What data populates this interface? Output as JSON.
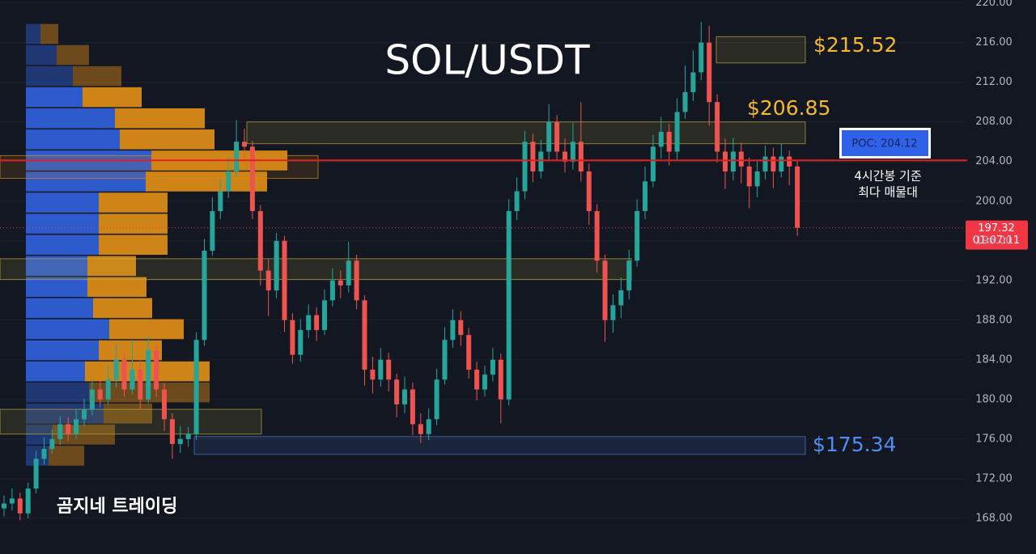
{
  "chart_data": {
    "type": "candlestick",
    "title": "SOL/USDT",
    "watermark": "곰지네 트레이딩",
    "ylim": [
      164.4,
      220.3
    ],
    "yticks": [
      {
        "value": 168,
        "label": "168.00"
      },
      {
        "value": 172,
        "label": "172.00"
      },
      {
        "value": 176,
        "label": "176.00"
      },
      {
        "value": 180,
        "label": "180.00"
      },
      {
        "value": 184,
        "label": "184.00"
      },
      {
        "value": 188,
        "label": "188.00"
      },
      {
        "value": 192,
        "label": "192.00"
      },
      {
        "value": 196,
        "label": "196.00"
      },
      {
        "value": 200,
        "label": "200.00"
      },
      {
        "value": 204,
        "label": "204.00"
      },
      {
        "value": 208,
        "label": "208.00"
      },
      {
        "value": 212,
        "label": "212.00"
      },
      {
        "value": 216,
        "label": "216.00"
      },
      {
        "value": 220,
        "label": "220.00"
      }
    ],
    "grid": true,
    "up_color": "#26a69a",
    "down_color": "#ef5350",
    "ohlc": [
      [
        169,
        170.3,
        168.2,
        169.5
      ],
      [
        169.5,
        171,
        168.8,
        170
      ],
      [
        170,
        170.6,
        167.8,
        168.5
      ],
      [
        168.5,
        171.6,
        168,
        171
      ],
      [
        171,
        174.8,
        170.5,
        174
      ],
      [
        174,
        176.2,
        173.4,
        175
      ],
      [
        175,
        177,
        174.5,
        176
      ],
      [
        176,
        178.3,
        175.4,
        177.5
      ],
      [
        177.5,
        178.2,
        175.8,
        176.5
      ],
      [
        176.5,
        179,
        176,
        178
      ],
      [
        178,
        180.1,
        177.3,
        179
      ],
      [
        179,
        182,
        178.4,
        181
      ],
      [
        181,
        181.8,
        179.2,
        180
      ],
      [
        180,
        183.5,
        179.5,
        182
      ],
      [
        182,
        185.6,
        181.2,
        184
      ],
      [
        184,
        184.8,
        180.3,
        181
      ],
      [
        181,
        186,
        180.5,
        183
      ],
      [
        183,
        183.9,
        179,
        180
      ],
      [
        180,
        186.4,
        179.6,
        185
      ],
      [
        185,
        185.6,
        180.2,
        181
      ],
      [
        181,
        181.7,
        176.8,
        178
      ],
      [
        178,
        178.6,
        174,
        175.5
      ],
      [
        175.5,
        177.3,
        174.6,
        176
      ],
      [
        176,
        177.2,
        175.2,
        176.5
      ],
      [
        176.5,
        186.8,
        175.9,
        186
      ],
      [
        186,
        196.2,
        185.4,
        195
      ],
      [
        195,
        200.4,
        194.5,
        199
      ],
      [
        199,
        202.3,
        198.2,
        201
      ],
      [
        201,
        204.5,
        200.3,
        203
      ],
      [
        203,
        208.2,
        202.4,
        206
      ],
      [
        206,
        207.3,
        203.8,
        205.5
      ],
      [
        205.5,
        206.1,
        198.2,
        199
      ],
      [
        199,
        199.6,
        191.5,
        193
      ],
      [
        193,
        194.2,
        188.4,
        191
      ],
      [
        191,
        196.8,
        190.2,
        196
      ],
      [
        196,
        196.5,
        186.8,
        188
      ],
      [
        188,
        188.7,
        183.6,
        184.5
      ],
      [
        184.5,
        188.1,
        183.8,
        187
      ],
      [
        187,
        189.6,
        186.2,
        188.5
      ],
      [
        188.5,
        189.3,
        185.9,
        187
      ],
      [
        187,
        191.1,
        186.5,
        190
      ],
      [
        190,
        193.2,
        189.4,
        192
      ],
      [
        192,
        193,
        190.2,
        191.5
      ],
      [
        191.5,
        195.9,
        190.8,
        194
      ],
      [
        194,
        194.6,
        189.1,
        190
      ],
      [
        190,
        190.5,
        181.4,
        183
      ],
      [
        183,
        184.3,
        180.6,
        182
      ],
      [
        182,
        185.2,
        181.3,
        184
      ],
      [
        184,
        184.7,
        180.8,
        182
      ],
      [
        182,
        182.6,
        178.2,
        179.5
      ],
      [
        179.5,
        182.3,
        178.6,
        181
      ],
      [
        181,
        181.7,
        176.4,
        177.5
      ],
      [
        177.5,
        178.6,
        175.6,
        176.5
      ],
      [
        176.5,
        179.1,
        175.9,
        178
      ],
      [
        178,
        183.1,
        177.4,
        182
      ],
      [
        182,
        187.3,
        181.5,
        186
      ],
      [
        186,
        189.1,
        185.2,
        188
      ],
      [
        188,
        188.9,
        185.4,
        186.5
      ],
      [
        186.5,
        187.2,
        182.1,
        183
      ],
      [
        183,
        183.8,
        179.9,
        181
      ],
      [
        181,
        183.4,
        180.3,
        182.5
      ],
      [
        182.5,
        185.2,
        181.8,
        184
      ],
      [
        184,
        184.6,
        177.6,
        180
      ],
      [
        180,
        200.2,
        179.4,
        199
      ],
      [
        199,
        202.4,
        198.1,
        201
      ],
      [
        201,
        207.1,
        200.2,
        206
      ],
      [
        206,
        206.8,
        201.9,
        203
      ],
      [
        203,
        206.2,
        202.3,
        205
      ],
      [
        205,
        209.8,
        204.2,
        208
      ],
      [
        208,
        208.7,
        204.1,
        205
      ],
      [
        205,
        206.3,
        202.9,
        204
      ],
      [
        204,
        207.9,
        203.2,
        206
      ],
      [
        206,
        210,
        202,
        203
      ],
      [
        203,
        203.8,
        197.6,
        199
      ],
      [
        199,
        199.7,
        192.8,
        194
      ],
      [
        194,
        194.6,
        185.8,
        188
      ],
      [
        188,
        190.6,
        186.7,
        189.5
      ],
      [
        189.5,
        192.3,
        188.2,
        191
      ],
      [
        191,
        195.1,
        190.1,
        194
      ],
      [
        194,
        200.2,
        193.4,
        199
      ],
      [
        199,
        203.5,
        198.2,
        202
      ],
      [
        202,
        206.7,
        201.4,
        205.5
      ],
      [
        205.5,
        208.5,
        204.3,
        207
      ],
      [
        207,
        207.8,
        203.6,
        205
      ],
      [
        205,
        210.4,
        204.2,
        209
      ],
      [
        209,
        213.7,
        208.3,
        211
      ],
      [
        211,
        215.2,
        210.1,
        213
      ],
      [
        213,
        218.1,
        212.2,
        216
      ],
      [
        216,
        217.7,
        207.6,
        210
      ],
      [
        210,
        210.8,
        203.9,
        205
      ],
      [
        205,
        206.3,
        201.2,
        203
      ],
      [
        203,
        206.4,
        202.1,
        205
      ],
      [
        205,
        205.9,
        201.8,
        203.5
      ],
      [
        203.5,
        204.4,
        199.3,
        201.5
      ],
      [
        201.5,
        204.1,
        200.4,
        203
      ],
      [
        203,
        205.6,
        202.2,
        204.5
      ],
      [
        204.5,
        205.4,
        201.3,
        203
      ],
      [
        203,
        205.8,
        202.4,
        204.5
      ],
      [
        204.5,
        205.1,
        201.6,
        203.5
      ],
      [
        203.5,
        204.2,
        196.5,
        197.32
      ]
    ],
    "volume_profile": {
      "bins": [
        217.88,
        215.75,
        213.62,
        211.5,
        209.37,
        207.24,
        205.11,
        202.98,
        200.86,
        198.73,
        196.6,
        194.47,
        192.34,
        190.22,
        188.09,
        185.96,
        183.83,
        181.7,
        179.58,
        177.45,
        175.32,
        173.19
      ],
      "buy": [
        18,
        38,
        58,
        70,
        110,
        116,
        155,
        148,
        90,
        90,
        90,
        76,
        76,
        83,
        103,
        90,
        73,
        78,
        96,
        33,
        28
      ],
      "sell": [
        22,
        40,
        60,
        73,
        111,
        117,
        168,
        150,
        85,
        85,
        85,
        60,
        73,
        73,
        92,
        78,
        154,
        149,
        60,
        77,
        44
      ],
      "buy_color": "#2f5fd6",
      "sell_color": "#d98a17"
    },
    "zones": [
      {
        "low": 213.95,
        "high": 216.6,
        "color": "#b9a93a"
      },
      {
        "low": 205.8,
        "high": 208,
        "color": "#b9a93a"
      },
      {
        "low": 202.3,
        "high": 204.6,
        "color": "#d98a17"
      },
      {
        "low": 192.1,
        "high": 194.2,
        "color": "#b9a93a"
      },
      {
        "low": 176.5,
        "high": 179,
        "color": "#b9a93a"
      },
      {
        "low": 174.45,
        "high": 176.25,
        "color": "#4a7bd0"
      }
    ],
    "levels": [
      {
        "value": 215.52,
        "label": "$215.52",
        "color": "#f5b82e"
      },
      {
        "value": 206.85,
        "label": "$206.85",
        "color": "#f5b82e"
      },
      {
        "value": 175.34,
        "label": "$175.34",
        "color": "#4f8df5"
      }
    ],
    "poc": {
      "value": 204.12,
      "label": "POC: 204.12",
      "color": "#e0201b",
      "note": [
        "4시간봉 기준",
        "최다 매물대"
      ]
    },
    "current_price": 197.32,
    "countdown": "01:07:11",
    "price_color": "#f23645"
  }
}
